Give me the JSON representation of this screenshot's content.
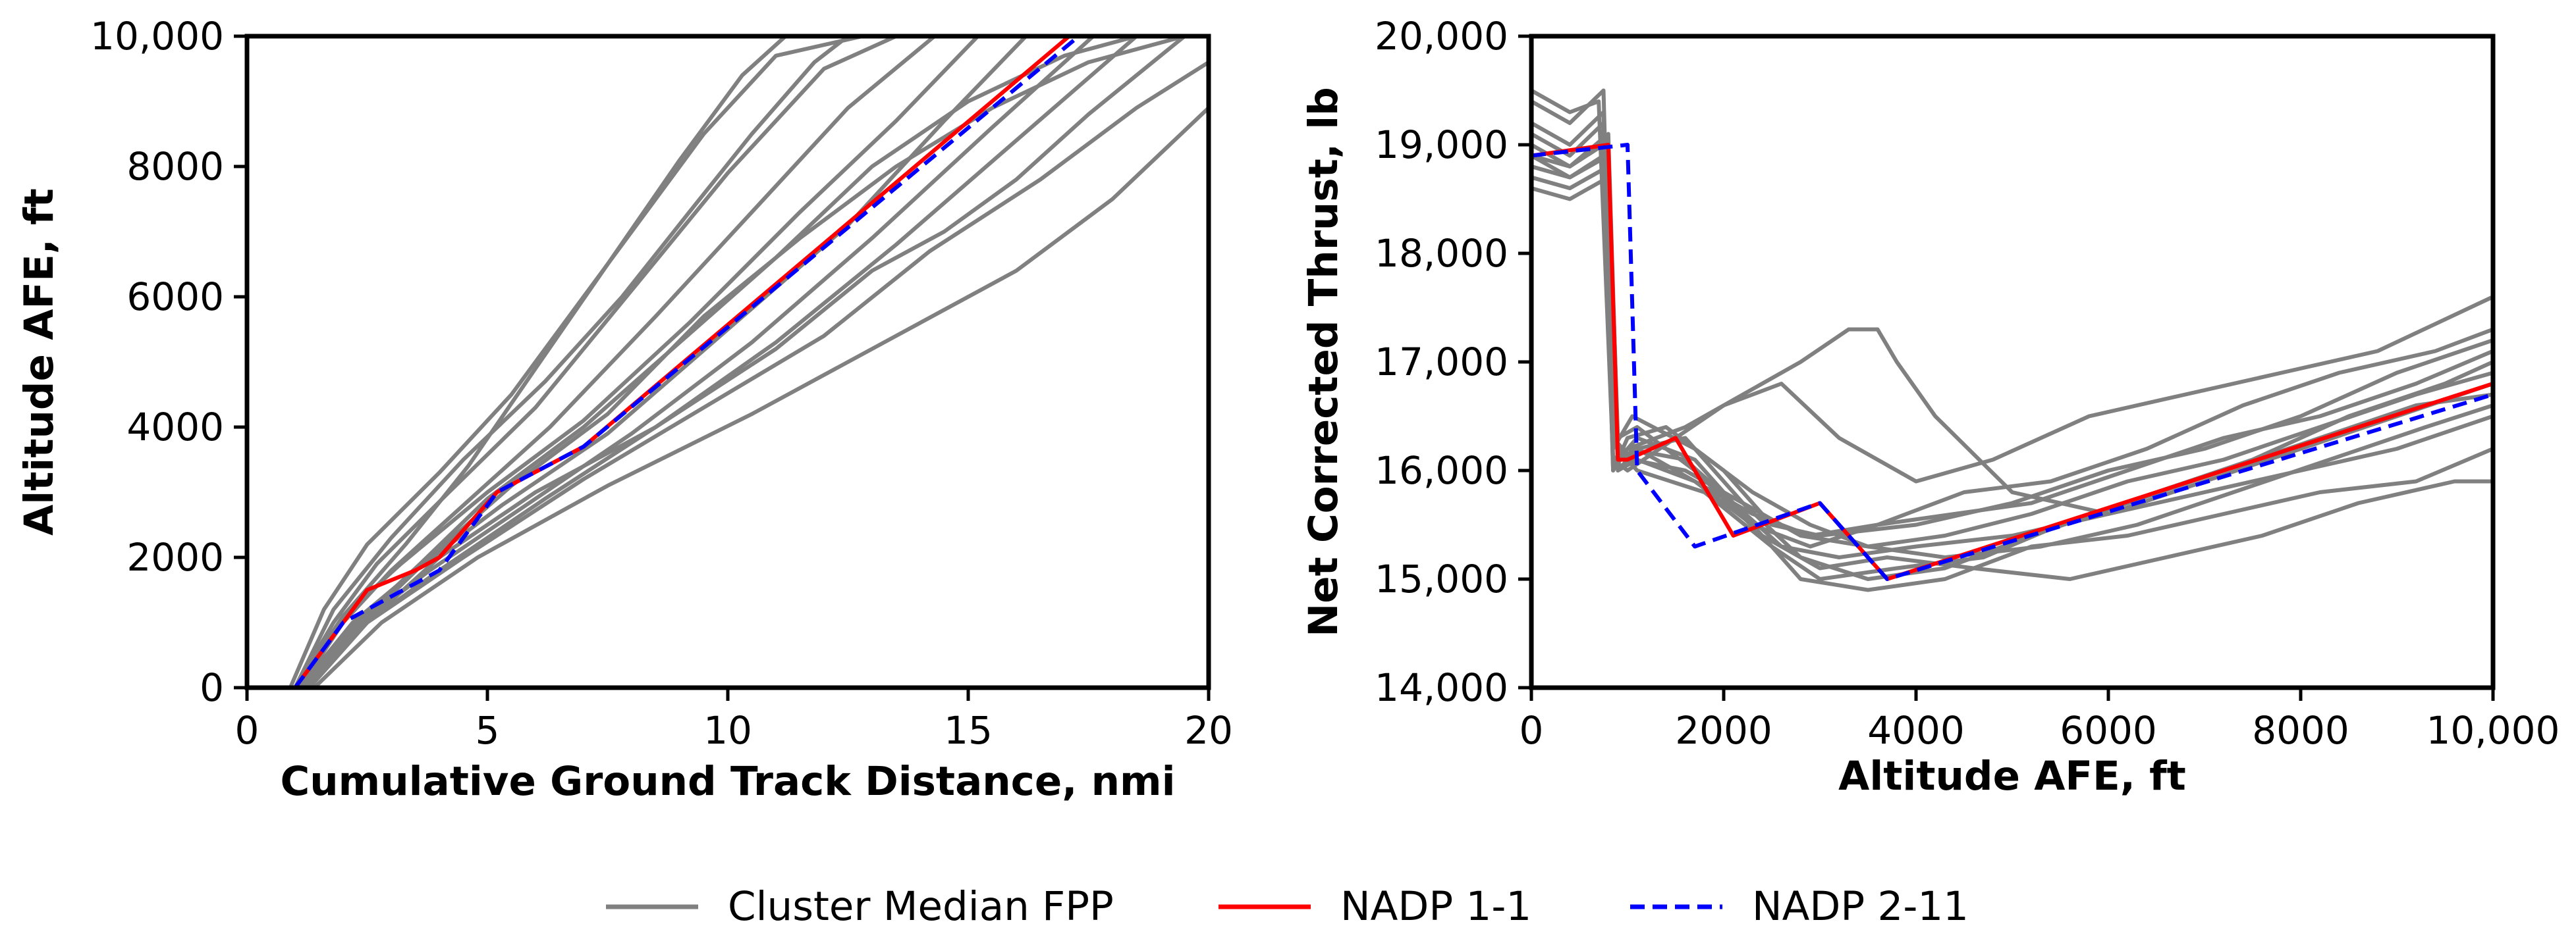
{
  "legend": {
    "entries": [
      {
        "label": "Cluster Median FPP",
        "color": "#808080",
        "style": "solid"
      },
      {
        "label": "NADP 1-1",
        "color": "#ff0000",
        "style": "solid"
      },
      {
        "label": "NADP 2-11",
        "color": "#0000ff",
        "style": "dashed"
      }
    ]
  },
  "chart_data": [
    {
      "type": "line",
      "title": "",
      "xlabel": "Cumulative Ground Track Distance, nmi",
      "ylabel": "Altitude AFE, ft",
      "xlim": [
        0,
        20
      ],
      "ylim": [
        0,
        10000
      ],
      "xticks": [
        0,
        5,
        10,
        15,
        20
      ],
      "xtick_labels": [
        "0",
        "5",
        "10",
        "15",
        "20"
      ],
      "yticks": [
        0,
        2000,
        4000,
        6000,
        8000,
        10000
      ],
      "ytick_labels": [
        "0",
        "2000",
        "4000",
        "6000",
        "8000",
        "10,000"
      ],
      "grid": false,
      "cluster_series": [
        {
          "name": "Cluster Median FPP",
          "x": [
            0.9,
            1.6,
            2.5,
            4,
            5.5,
            7.5,
            9.5,
            11,
            12.8
          ],
          "y": [
            0,
            1200,
            2200,
            3300,
            4500,
            6500,
            8500,
            9700,
            10000
          ]
        },
        {
          "name": "Cluster Median FPP",
          "x": [
            1,
            1.8,
            2.7,
            4.2,
            6,
            8,
            10,
            12,
            13.5
          ],
          "y": [
            0,
            1000,
            1900,
            3000,
            4300,
            6100,
            7900,
            9500,
            10000
          ]
        },
        {
          "name": "Cluster Median FPP",
          "x": [
            1.1,
            2,
            3,
            4.5,
            6.3,
            8.5,
            10.5,
            12.5,
            14.3
          ],
          "y": [
            0,
            1000,
            1800,
            2800,
            4000,
            5700,
            7300,
            8900,
            10000
          ]
        },
        {
          "name": "Cluster Median FPP",
          "x": [
            1,
            2,
            3.2,
            5,
            7,
            9.2,
            11.5,
            13.5,
            15.2
          ],
          "y": [
            0,
            1100,
            1900,
            3000,
            4100,
            5600,
            7300,
            8700,
            10000
          ]
        },
        {
          "name": "Cluster Median FPP",
          "x": [
            1.1,
            2.2,
            3.5,
            5.3,
            7.5,
            10,
            12.5,
            14.5,
            16.2
          ],
          "y": [
            0,
            1000,
            1800,
            2800,
            3900,
            5500,
            7100,
            8700,
            10000
          ]
        },
        {
          "name": "Cluster Median FPP",
          "x": [
            1.2,
            2.2,
            3.8,
            5.8,
            8,
            10.5,
            13,
            15.5,
            17.6
          ],
          "y": [
            0,
            900,
            1800,
            2800,
            3900,
            5300,
            6900,
            8600,
            10000
          ]
        },
        {
          "name": "Cluster Median FPP",
          "x": [
            1.2,
            2.3,
            4,
            6.2,
            8.5,
            11,
            13.5,
            16,
            18.5
          ],
          "y": [
            0,
            900,
            1800,
            2900,
            4000,
            5300,
            6800,
            8400,
            10000
          ]
        },
        {
          "name": "Cluster Median FPP",
          "x": [
            1.3,
            2.5,
            4,
            6,
            8.5,
            11,
            13,
            14.5,
            16,
            17.5,
            19.5
          ],
          "y": [
            0,
            1000,
            2000,
            3000,
            4000,
            5200,
            6400,
            7000,
            7800,
            8800,
            10000
          ]
        },
        {
          "name": "Cluster Median FPP",
          "x": [
            1.2,
            2.5,
            4.5,
            7,
            9.5,
            12,
            14.2,
            16.5,
            18.5,
            20
          ],
          "y": [
            0,
            1000,
            2000,
            3200,
            4300,
            5400,
            6700,
            7800,
            8900,
            9600
          ]
        },
        {
          "name": "Cluster Median FPP",
          "x": [
            1.4,
            2.8,
            4.8,
            7.5,
            10.5,
            13.5,
            16,
            18,
            20
          ],
          "y": [
            0,
            1000,
            2000,
            3100,
            4200,
            5400,
            6400,
            7500,
            8900
          ]
        },
        {
          "name": "Cluster Median FPP",
          "x": [
            1,
            1.8,
            3,
            4.5,
            6.2,
            7.8,
            9.2,
            10.5,
            11.8,
            12.5
          ],
          "y": [
            0,
            1200,
            2300,
            3500,
            4700,
            6000,
            7300,
            8500,
            9600,
            10000
          ]
        },
        {
          "name": "Cluster Median FPP",
          "x": [
            1.1,
            2,
            3.3,
            4.6,
            6,
            7.5,
            9,
            10.3,
            11.2
          ],
          "y": [
            0,
            1100,
            2200,
            3400,
            4900,
            6500,
            8100,
            9400,
            10000
          ]
        },
        {
          "name": "Cluster Median FPP",
          "x": [
            1.3,
            2.4,
            3.8,
            5.5,
            7.5,
            9.5,
            11.5,
            13.5,
            15.5,
            17.5,
            19.5
          ],
          "y": [
            0,
            1000,
            2000,
            3100,
            4200,
            5700,
            6900,
            8000,
            8900,
            9600,
            10000
          ]
        },
        {
          "name": "Cluster Median FPP",
          "x": [
            1.2,
            2.3,
            3.6,
            5,
            7,
            9,
            11,
            13,
            15,
            17,
            18.5
          ],
          "y": [
            0,
            1000,
            1900,
            2900,
            4000,
            5300,
            6600,
            8000,
            9000,
            9700,
            10000
          ]
        }
      ],
      "series": [
        {
          "name": "NADP 1-1",
          "color": "#ff0000",
          "x": [
            1,
            2,
            2.5,
            3.5,
            4,
            5.2,
            7,
            17.1
          ],
          "y": [
            0,
            1000,
            1500,
            1800,
            2000,
            3000,
            3700,
            10000
          ]
        },
        {
          "name": "NADP 2-11",
          "color": "#0000ff",
          "x": [
            1,
            2,
            4,
            5.2,
            7,
            17.3
          ],
          "y": [
            0,
            1000,
            1800,
            3000,
            3700,
            10000
          ]
        }
      ]
    },
    {
      "type": "line",
      "title": "",
      "xlabel": "Altitude AFE, ft",
      "ylabel": "Net Corrected Thrust, lb",
      "xlim": [
        0,
        10000
      ],
      "ylim": [
        14000,
        20000
      ],
      "xticks": [
        0,
        2000,
        4000,
        6000,
        8000,
        10000
      ],
      "xtick_labels": [
        "0",
        "2000",
        "4000",
        "6000",
        "8000",
        "10,000"
      ],
      "yticks": [
        14000,
        15000,
        16000,
        17000,
        18000,
        19000,
        20000
      ],
      "ytick_labels": [
        "14,000",
        "15,000",
        "16,000",
        "17,000",
        "18,000",
        "19,000",
        "20,000"
      ],
      "grid": false,
      "cluster_series": [
        {
          "name": "Cluster Median FPP",
          "x": [
            0,
            400,
            700,
            850,
            1000,
            1600,
            2100,
            2600,
            3200,
            4000,
            5000,
            6000,
            7000,
            8000,
            9000,
            10000
          ],
          "y": [
            19500,
            19300,
            19400,
            16100,
            16200,
            16100,
            15700,
            15300,
            15200,
            15300,
            15400,
            15600,
            15900,
            16200,
            16500,
            16800
          ]
        },
        {
          "name": "Cluster Median FPP",
          "x": [
            0,
            400,
            750,
            850,
            1000,
            1400,
            2000,
            2500,
            3000,
            4000,
            5000,
            6000,
            7000,
            8000,
            9000,
            10000
          ],
          "y": [
            19200,
            19000,
            19300,
            16000,
            16300,
            16400,
            16000,
            15500,
            15400,
            15500,
            15700,
            16000,
            16200,
            16500,
            16900,
            17200
          ]
        },
        {
          "name": "Cluster Median FPP",
          "x": [
            0,
            400,
            750,
            850,
            1000,
            1500,
            2000,
            2600,
            3200,
            4000,
            4800,
            5800,
            6800,
            7800,
            8800,
            10000
          ],
          "y": [
            18900,
            18800,
            19000,
            16100,
            16000,
            16300,
            16600,
            16800,
            16300,
            15900,
            16100,
            16500,
            16700,
            16900,
            17100,
            17600
          ]
        },
        {
          "name": "Cluster Median FPP",
          "x": [
            0,
            400,
            750,
            850,
            1000,
            1600,
            2200,
            2800,
            3300,
            3600,
            3800,
            4200,
            5000,
            6000,
            7000,
            8000,
            9000,
            10000
          ],
          "y": [
            18800,
            18700,
            18900,
            16000,
            16200,
            16400,
            16700,
            17000,
            17300,
            17300,
            17000,
            16500,
            15800,
            15600,
            15800,
            16000,
            16200,
            16500
          ]
        },
        {
          "name": "Cluster Median FPP",
          "x": [
            0,
            400,
            800,
            900,
            1100,
            1700,
            2300,
            2800,
            3500,
            4300,
            5200,
            6200,
            7200,
            8200,
            9200,
            10000
          ],
          "y": [
            18700,
            18600,
            18800,
            16100,
            16300,
            16100,
            15500,
            15000,
            14900,
            15000,
            15300,
            15400,
            15600,
            15800,
            15900,
            16200
          ]
        },
        {
          "name": "Cluster Median FPP",
          "x": [
            0,
            400,
            800,
            900,
            1100,
            1800,
            2500,
            3000,
            3800,
            4700,
            5500,
            6500,
            7500,
            8500,
            9500,
            10000
          ],
          "y": [
            19000,
            18800,
            19100,
            16200,
            16000,
            15800,
            15300,
            15000,
            15100,
            15200,
            15500,
            15800,
            16100,
            16500,
            16800,
            17000
          ]
        },
        {
          "name": "Cluster Median FPP",
          "x": [
            0,
            400,
            800,
            900,
            1100,
            1700,
            2300,
            2900,
            3600,
            4500,
            5400,
            6400,
            7400,
            8400,
            9400,
            10000
          ],
          "y": [
            18600,
            18500,
            18700,
            16000,
            16100,
            15900,
            15600,
            15400,
            15500,
            15800,
            15900,
            16200,
            16600,
            16900,
            17100,
            17300
          ]
        },
        {
          "name": "Cluster Median FPP",
          "x": [
            0,
            400,
            800,
            900,
            1100,
            1700,
            2400,
            3000,
            3700,
            4600,
            5600,
            6600,
            7600,
            8600,
            9600,
            10000
          ],
          "y": [
            18900,
            18700,
            18900,
            16300,
            16400,
            16000,
            15400,
            15100,
            15200,
            15100,
            15000,
            15200,
            15400,
            15700,
            15900,
            15900
          ]
        },
        {
          "name": "Cluster Median FPP",
          "x": [
            0,
            400,
            800,
            900,
            1100,
            1600,
            2200,
            2800,
            3500,
            4300,
            5200,
            6200,
            7200,
            8200,
            9200,
            10000
          ],
          "y": [
            18800,
            18700,
            18900,
            16100,
            16200,
            16300,
            15700,
            15200,
            15000,
            15100,
            15400,
            15700,
            16000,
            16300,
            16600,
            16700
          ]
        },
        {
          "name": "Cluster Median FPP",
          "x": [
            0,
            400,
            750,
            850,
            1050,
            1700,
            2300,
            2900,
            3500,
            4300,
            5300,
            6300,
            7300,
            8300,
            9300,
            10000
          ],
          "y": [
            19100,
            18900,
            19200,
            16200,
            16500,
            16200,
            15800,
            15500,
            15300,
            15200,
            15300,
            15500,
            15800,
            16100,
            16400,
            16600
          ]
        },
        {
          "name": "Cluster Median FPP",
          "x": [
            0,
            400,
            800,
            900,
            1100,
            1700,
            2300,
            2900,
            3600,
            4400,
            5200,
            6200,
            7200,
            8200,
            9200,
            10000
          ],
          "y": [
            18700,
            18600,
            18800,
            16000,
            16200,
            15900,
            15500,
            15300,
            15500,
            15600,
            15700,
            16000,
            16300,
            16500,
            16800,
            17100
          ]
        },
        {
          "name": "Cluster Median FPP",
          "x": [
            0,
            400,
            750,
            850,
            1050,
            1600,
            2200,
            2800,
            3500,
            4300,
            5200,
            6200,
            7200,
            8200,
            9200,
            10000
          ],
          "y": [
            19400,
            19200,
            19500,
            16300,
            16100,
            16000,
            15700,
            15400,
            15300,
            15400,
            15600,
            15900,
            16100,
            16400,
            16700,
            16900
          ]
        }
      ],
      "series": [
        {
          "name": "NADP 1-1",
          "color": "#ff0000",
          "x": [
            0,
            800,
            900,
            1000,
            1500,
            2100,
            3000,
            3700,
            10000
          ],
          "y": [
            18900,
            19000,
            16100,
            16100,
            16300,
            15400,
            15700,
            15000,
            16800
          ]
        },
        {
          "name": "NADP 2-11",
          "color": "#0000ff",
          "x": [
            0,
            1000,
            1100,
            1700,
            3000,
            3700,
            10000
          ],
          "y": [
            18900,
            19000,
            16000,
            15300,
            15700,
            15000,
            16700
          ]
        }
      ]
    }
  ]
}
